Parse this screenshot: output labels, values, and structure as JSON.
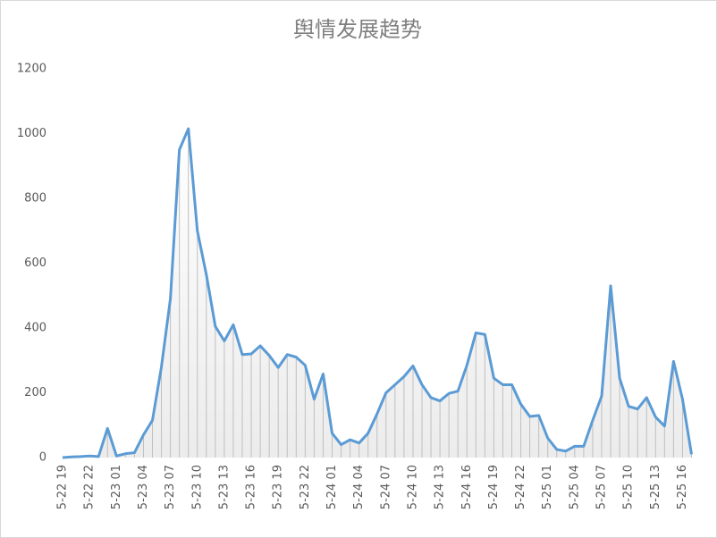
{
  "chart_data": {
    "type": "line",
    "title": "舆情发展趋势",
    "categories": [
      "5-22 19",
      null,
      null,
      "5-22 22",
      null,
      null,
      "5-23 01",
      null,
      null,
      "5-23 04",
      null,
      null,
      "5-23 07",
      null,
      null,
      "5-23 10",
      null,
      null,
      "5-23 13",
      null,
      null,
      "5-23 16",
      null,
      null,
      "5-23 19",
      null,
      null,
      "5-23 22",
      null,
      null,
      "5-24 01",
      null,
      null,
      "5-24 04",
      null,
      null,
      "5-24 07",
      null,
      null,
      "5-24 10",
      null,
      null,
      "5-24 13",
      null,
      null,
      "5-24 16",
      null,
      null,
      "5-24 19",
      null,
      null,
      "5-24 22",
      null,
      null,
      "5-25 01",
      null,
      null,
      "5-25 04",
      null,
      null,
      "5-25 07",
      null,
      null,
      "5-25 10",
      null,
      null,
      "5-25 13",
      null,
      null,
      "5-25 16",
      null
    ],
    "series": [
      {
        "color": "#5b9bd5",
        "values": [
          0,
          2,
          3,
          5,
          3,
          90,
          5,
          12,
          15,
          70,
          115,
          280,
          490,
          950,
          1015,
          700,
          565,
          405,
          360,
          410,
          318,
          320,
          345,
          315,
          278,
          318,
          310,
          285,
          180,
          258,
          75,
          40,
          55,
          45,
          75,
          135,
          200,
          225,
          250,
          283,
          225,
          185,
          175,
          198,
          205,
          285,
          385,
          380,
          245,
          225,
          225,
          165,
          127,
          130,
          60,
          25,
          20,
          35,
          35,
          115,
          190,
          530,
          245,
          158,
          150,
          185,
          125,
          97,
          297,
          180,
          10
        ]
      }
    ],
    "ylim": [
      0,
      1200
    ],
    "yticks": [
      0,
      200,
      400,
      600,
      800,
      1000,
      1200
    ],
    "grid": false,
    "drop_lines": true
  }
}
